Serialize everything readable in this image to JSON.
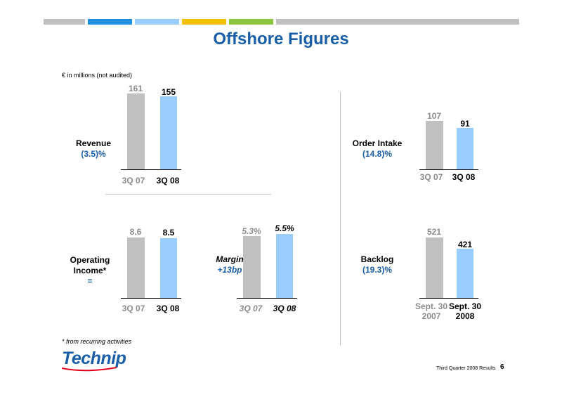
{
  "colors": {
    "accent_blue": "#1a5ea8",
    "bar_previous": "#c0c0c0",
    "bar_current": "#99ccff",
    "top_bar_segments": [
      "#c0c0c0",
      "#1f8fe0",
      "#99ccff",
      "#f2c200",
      "#8cc63f",
      "#c0c0c0"
    ]
  },
  "title": "Offshore Figures",
  "unit_note": "€ in millions (not audited)",
  "panels": {
    "revenue": {
      "name": "Revenue",
      "change": "(3.5)%",
      "prev_label": "3Q 07",
      "curr_label": "3Q 08",
      "prev_value_text": "161",
      "curr_value_text": "155",
      "prev_value": 161,
      "curr_value": 155
    },
    "operating_income": {
      "name": "Operating",
      "name_line2": "Income*",
      "change": "=",
      "prev_label": "3Q 07",
      "curr_label": "3Q 08",
      "prev_value_text": "8.6",
      "curr_value_text": "8.5",
      "prev_value": 8.6,
      "curr_value": 8.5
    },
    "margin": {
      "name": "Margin",
      "change": "+13bp",
      "prev_label": "3Q 07",
      "curr_label": "3Q 08",
      "prev_value_text": "5.3%",
      "curr_value_text": "5.5%",
      "prev_value": 5.3,
      "curr_value": 5.5
    },
    "order_intake": {
      "name": "Order Intake",
      "change": "(14.8)%",
      "prev_label": "3Q 07",
      "curr_label": "3Q 08",
      "prev_value_text": "107",
      "curr_value_text": "91",
      "prev_value": 107,
      "curr_value": 91
    },
    "backlog": {
      "name": "Backlog",
      "change": "(19.3)%",
      "prev_label_line1": "Sept. 30",
      "prev_label_line2": "2007",
      "curr_label_line1": "Sept. 30",
      "curr_label_line2": "2008",
      "prev_value_text": "521",
      "curr_value_text": "421",
      "prev_value": 521,
      "curr_value": 421
    }
  },
  "footnote": "* from recurring activities",
  "logo_text": "Technip",
  "footer": {
    "report_name": "Third Quarter 2008 Results",
    "page_number": "6"
  }
}
